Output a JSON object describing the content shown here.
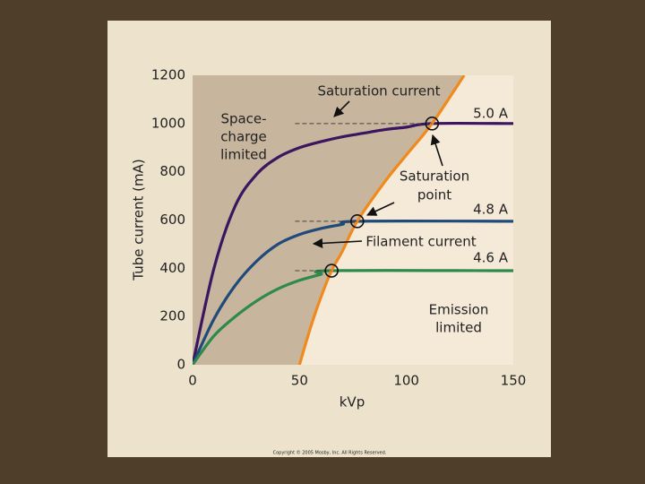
{
  "chart_data": {
    "type": "line",
    "x_label": "kVp",
    "y_label": "Tube current (mA)",
    "xlim": [
      0,
      150
    ],
    "ylim": [
      0,
      1200
    ],
    "xticks": [
      0,
      50,
      100,
      150
    ],
    "yticks": [
      0,
      200,
      400,
      600,
      800,
      1000,
      1200
    ],
    "grid": false,
    "series": [
      {
        "name": "5.0 A",
        "color": "#3b1560",
        "x": [
          0,
          10,
          20,
          30,
          40,
          50,
          60,
          70,
          80,
          90,
          100,
          112,
          150
        ],
        "values": [
          0,
          400,
          660,
          790,
          860,
          900,
          925,
          945,
          960,
          975,
          985,
          1000,
          1000
        ]
      },
      {
        "name": "4.8 A",
        "color": "#1f4a7a",
        "x": [
          0,
          10,
          20,
          30,
          40,
          50,
          60,
          70,
          77,
          150
        ],
        "values": [
          0,
          190,
          330,
          430,
          500,
          540,
          565,
          582,
          595,
          595
        ]
      },
      {
        "name": "4.6 A",
        "color": "#2e8a4c",
        "x": [
          0,
          10,
          20,
          30,
          40,
          50,
          60,
          65,
          150
        ],
        "values": [
          0,
          120,
          200,
          265,
          315,
          350,
          375,
          390,
          390
        ]
      },
      {
        "name": "Saturation current",
        "color": "#f08a1c",
        "x": [
          50,
          55,
          60,
          65,
          70,
          77,
          90,
          100,
          112,
          127
        ],
        "values": [
          0,
          150,
          280,
          390,
          470,
          595,
          760,
          870,
          1000,
          1200
        ]
      }
    ],
    "annotations": [
      {
        "lines": [
          "Space-",
          "charge",
          "limited"
        ]
      },
      {
        "lines": [
          "Saturation",
          "point"
        ]
      },
      {
        "lines": [
          "Filament current"
        ]
      },
      {
        "lines": [
          "Emission",
          "limited"
        ]
      }
    ],
    "footer": "Copyright © 2005 Mosby, Inc. All Rights Reserved."
  }
}
